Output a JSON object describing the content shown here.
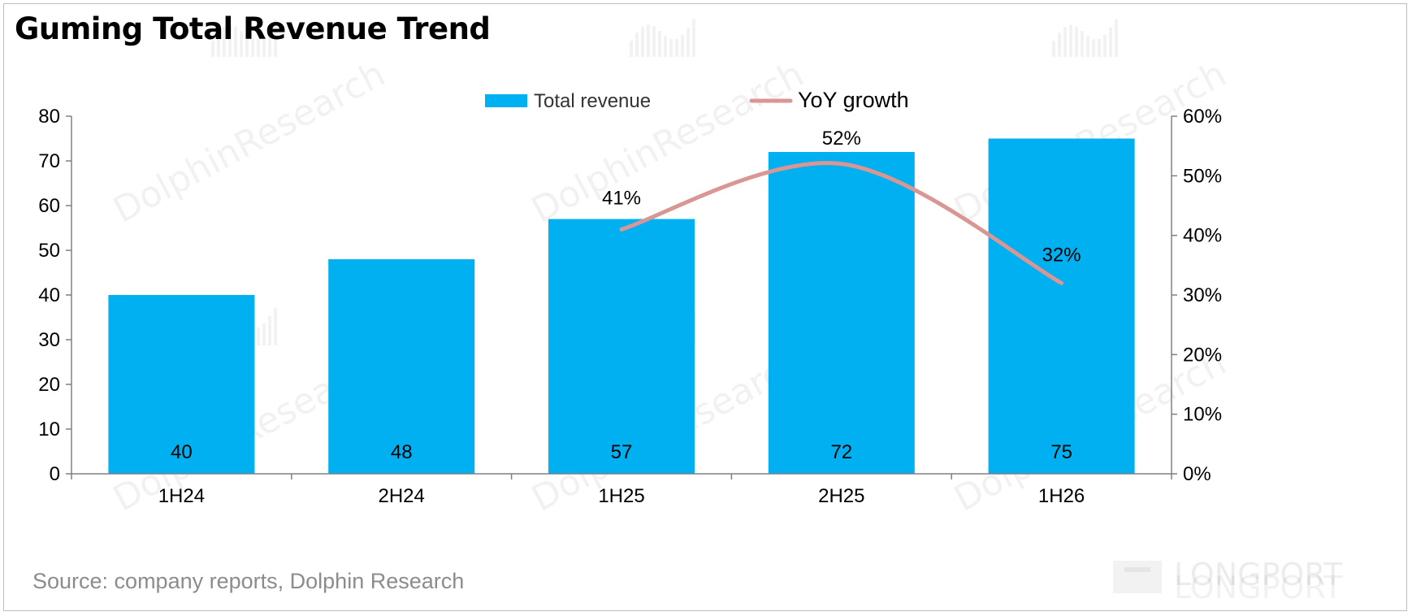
{
  "title": "Guming Total Revenue Trend",
  "source": "Source: company reports, Dolphin Research",
  "watermark_text": "DolphinResearch",
  "logo_text": "LONGPORT",
  "colors": {
    "bar": "#00B0F0",
    "line": "#D99694",
    "axis": "#808080"
  },
  "chart_data": {
    "type": "bar",
    "categories": [
      "1H24",
      "2H24",
      "1H25",
      "2H25",
      "1H26"
    ],
    "series": [
      {
        "name": "Total revenue",
        "type": "bar",
        "axis": "left",
        "values": [
          40,
          48,
          57,
          72,
          75
        ],
        "labels": [
          "40",
          "48",
          "57",
          "72",
          "75"
        ]
      },
      {
        "name": "YoY growth",
        "type": "line",
        "axis": "right",
        "values": [
          null,
          null,
          0.41,
          0.52,
          0.32
        ],
        "labels": [
          "",
          "",
          "41%",
          "52%",
          "32%"
        ]
      }
    ],
    "ylim": [
      0,
      80
    ],
    "yticks": [
      "0",
      "10",
      "20",
      "30",
      "40",
      "50",
      "60",
      "70",
      "80"
    ],
    "y2lim": [
      0,
      0.6
    ],
    "y2ticks": [
      "0%",
      "10%",
      "20%",
      "30%",
      "40%",
      "50%",
      "60%"
    ],
    "legend": "top-center",
    "grid": false
  }
}
